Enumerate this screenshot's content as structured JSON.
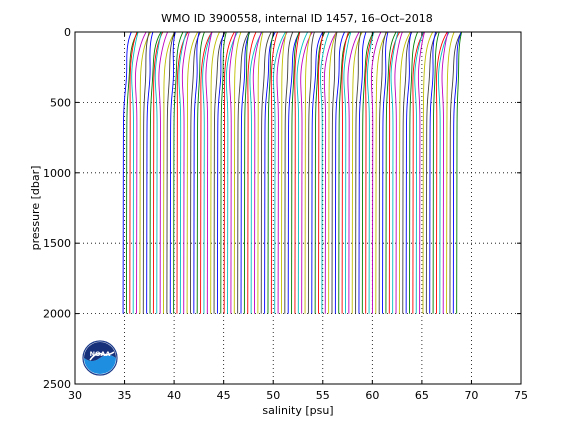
{
  "chart_data": {
    "type": "line",
    "title": "WMO ID 3900558, internal ID 1457, 16–Oct–2018",
    "xlabel": "salinity [psu]",
    "ylabel": "pressure [dbar]",
    "xlim": [
      30,
      75
    ],
    "ylim": [
      2500,
      0
    ],
    "y_reversed": true,
    "grid": "dotted",
    "x_ticks": [
      30,
      35,
      40,
      45,
      50,
      55,
      60,
      65,
      70,
      75
    ],
    "x_tick_labels": [
      "30",
      "35",
      "40",
      "45",
      "50",
      "55",
      "60",
      "65",
      "70",
      "75"
    ],
    "y_ticks": [
      0,
      500,
      1000,
      1500,
      2000,
      2500
    ],
    "y_tick_labels": [
      "0",
      "500",
      "1000",
      "1500",
      "2000",
      "2500"
    ],
    "waterfall": {
      "profile_count": 100,
      "first_offset_salinity": 35.0,
      "offset_step_salinity": 0.34,
      "surface_salinity_excess": 1.1,
      "deep_salinity": 34.9,
      "max_pressure": 2000,
      "series_colors": [
        "#0000ff",
        "#008000",
        "#ff0000",
        "#00bfbf",
        "#bf00bf",
        "#bfbf00",
        "#404040"
      ]
    }
  },
  "logo": {
    "name": "NOAA",
    "text": "NOAA"
  }
}
